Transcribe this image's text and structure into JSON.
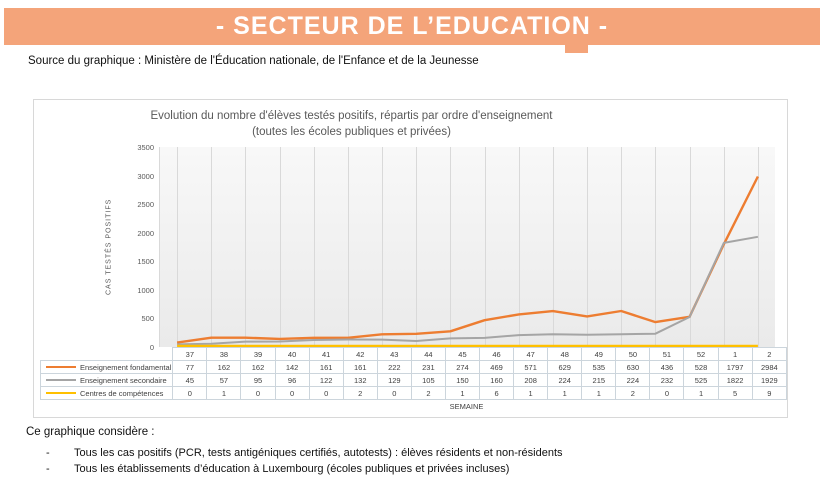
{
  "banner": {
    "title": "- SECTEUR DE L’EDUCATION -",
    "bg_color": "#F4A47A",
    "text_color": "#FFFFFF"
  },
  "source_line": "Source du graphique : Ministère de l'Éducation nationale, de l'Enfance et de la Jeunesse",
  "chart_data": {
    "type": "line",
    "title": "Evolution du nombre d'élèves testés positifs, répartis par ordre d'enseignement",
    "subtitle": "(toutes les écoles publiques et privées)",
    "xlabel": "SEMAINE",
    "ylabel": "CAS TESTÉS POSITIFS",
    "ylim": [
      0,
      3500
    ],
    "y_ticks": [
      0,
      500,
      1000,
      1500,
      2000,
      2500,
      3000,
      3500
    ],
    "grid": "vertical",
    "legend_position": "data-table-left",
    "categories": [
      "37",
      "38",
      "39",
      "40",
      "41",
      "42",
      "43",
      "44",
      "45",
      "46",
      "47",
      "48",
      "49",
      "50",
      "51",
      "52",
      "1",
      "2"
    ],
    "series": [
      {
        "name": "Enseignement fondamental",
        "color": "#ED7D31",
        "stroke_width": 2.4,
        "values": [
          77,
          162,
          162,
          142,
          161,
          161,
          222,
          231,
          274,
          469,
          571,
          629,
          535,
          630,
          436,
          528,
          1797,
          2984
        ]
      },
      {
        "name": "Enseignement secondaire",
        "color": "#A5A5A5",
        "stroke_width": 2.0,
        "values": [
          45,
          57,
          95,
          96,
          122,
          132,
          129,
          105,
          150,
          160,
          208,
          224,
          215,
          224,
          232,
          525,
          1822,
          1929
        ]
      },
      {
        "name": "Centres de compétences",
        "color": "#FFC000",
        "stroke_width": 2.4,
        "values": [
          0,
          1,
          0,
          0,
          0,
          2,
          0,
          2,
          1,
          6,
          1,
          1,
          1,
          2,
          0,
          1,
          5,
          9
        ]
      }
    ]
  },
  "footer": {
    "intro": "Ce graphique considère :",
    "bullets": [
      "Tous les cas positifs (PCR, tests antigéniques certifiés, autotests) : élèves résidents et non-résidents",
      "Tous les établissements d’éducation à Luxembourg (écoles publiques et privées incluses)"
    ]
  }
}
